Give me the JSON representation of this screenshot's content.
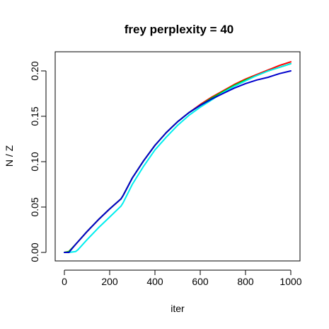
{
  "chart_data": {
    "type": "line",
    "title": "frey perplexity = 40",
    "xlabel": "iter",
    "ylabel": "N / Z",
    "xlim": [
      0,
      1000
    ],
    "ylim": [
      0,
      0.21
    ],
    "xticks": [
      "0",
      "200",
      "400",
      "600",
      "800",
      "1000"
    ],
    "xtick_values": [
      0,
      200,
      400,
      600,
      800,
      1000
    ],
    "yticks": [
      "0.00",
      "0.05",
      "0.10",
      "0.15",
      "0.20"
    ],
    "ytick_values": [
      0,
      0.05,
      0.1,
      0.15,
      0.2
    ],
    "grid": false,
    "series": [
      {
        "color": "#ff0000",
        "x": [
          0,
          20,
          50,
          100,
          150,
          200,
          250,
          260,
          300,
          350,
          400,
          450,
          500,
          550,
          600,
          650,
          700,
          750,
          800,
          850,
          900,
          950,
          1000
        ],
        "y": [
          0,
          0.001,
          0.009,
          0.023,
          0.036,
          0.048,
          0.059,
          0.063,
          0.082,
          0.101,
          0.118,
          0.132,
          0.144,
          0.154,
          0.163,
          0.171,
          0.178,
          0.185,
          0.191,
          0.196,
          0.201,
          0.206,
          0.21
        ]
      },
      {
        "color": "#00cc00",
        "x": [
          0,
          20,
          50,
          100,
          150,
          200,
          250,
          260,
          300,
          350,
          400,
          450,
          500,
          550,
          600,
          650,
          700,
          750,
          800,
          850,
          900,
          950,
          1000
        ],
        "y": [
          0,
          0.001,
          0.009,
          0.023,
          0.036,
          0.048,
          0.059,
          0.063,
          0.082,
          0.101,
          0.118,
          0.132,
          0.144,
          0.154,
          0.162,
          0.17,
          0.177,
          0.184,
          0.19,
          0.195,
          0.2,
          0.204,
          0.208
        ]
      },
      {
        "color": "#00eeee",
        "x": [
          0,
          20,
          50,
          60,
          100,
          150,
          200,
          250,
          260,
          300,
          350,
          400,
          450,
          500,
          550,
          600,
          650,
          700,
          750,
          800,
          850,
          900,
          950,
          1000
        ],
        "y": [
          0,
          0,
          0.001,
          0.003,
          0.014,
          0.027,
          0.039,
          0.051,
          0.055,
          0.075,
          0.095,
          0.113,
          0.127,
          0.14,
          0.151,
          0.16,
          0.168,
          0.176,
          0.183,
          0.189,
          0.195,
          0.2,
          0.204,
          0.208
        ]
      },
      {
        "color": "#0000cc",
        "x": [
          0,
          20,
          50,
          100,
          150,
          200,
          250,
          260,
          300,
          350,
          400,
          450,
          500,
          550,
          600,
          650,
          700,
          750,
          800,
          850,
          900,
          950,
          1000
        ],
        "y": [
          0,
          0,
          0.009,
          0.023,
          0.036,
          0.048,
          0.059,
          0.063,
          0.082,
          0.101,
          0.118,
          0.132,
          0.144,
          0.154,
          0.162,
          0.169,
          0.175,
          0.181,
          0.186,
          0.19,
          0.193,
          0.197,
          0.2
        ]
      }
    ]
  }
}
